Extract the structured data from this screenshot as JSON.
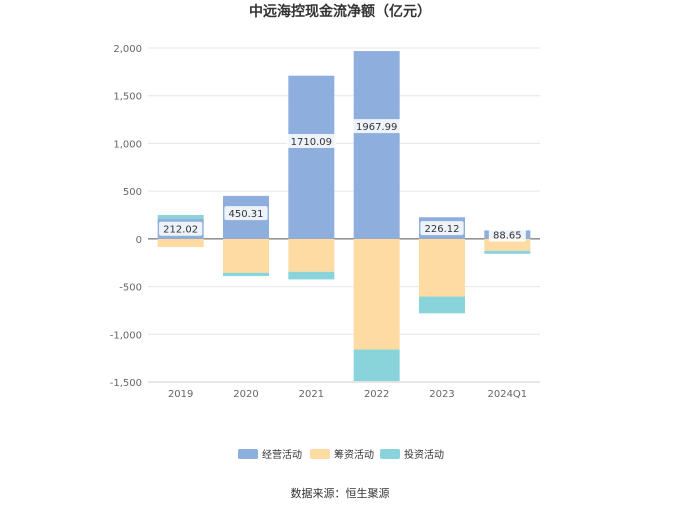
{
  "chart_data": {
    "type": "bar",
    "stacked": true,
    "title": "中远海控现金流净额（亿元）",
    "categories": [
      "2019",
      "2020",
      "2021",
      "2022",
      "2023",
      "2024Q1"
    ],
    "series": [
      {
        "name": "经营活动",
        "color": "#8eaedd",
        "values": [
          212.02,
          450.31,
          1710.09,
          1967.99,
          226.12,
          88.65
        ]
      },
      {
        "name": "筹资活动",
        "color": "#fedba3",
        "values": [
          -85,
          -355,
          -345,
          -1160,
          -605,
          -125
        ]
      },
      {
        "name": "投资活动",
        "color": "#89d4da",
        "values": [
          38,
          -35,
          -80,
          -330,
          -175,
          -32
        ]
      }
    ],
    "bar_labels": [
      "212.02",
      "450.31",
      "1710.09",
      "1967.99",
      "226.12",
      "88.65"
    ],
    "y_ticks": [
      2000,
      1500,
      1000,
      500,
      0,
      -500,
      -1000,
      -1500
    ],
    "y_tick_labels": [
      "2,000",
      "1,500",
      "1,000",
      "500",
      "0",
      "-500",
      "-1,000",
      "-1,500"
    ],
    "ylim": [
      -1500,
      2000
    ],
    "grid": true,
    "legend_position": "bottom",
    "source": "数据来源：恒生聚源"
  }
}
